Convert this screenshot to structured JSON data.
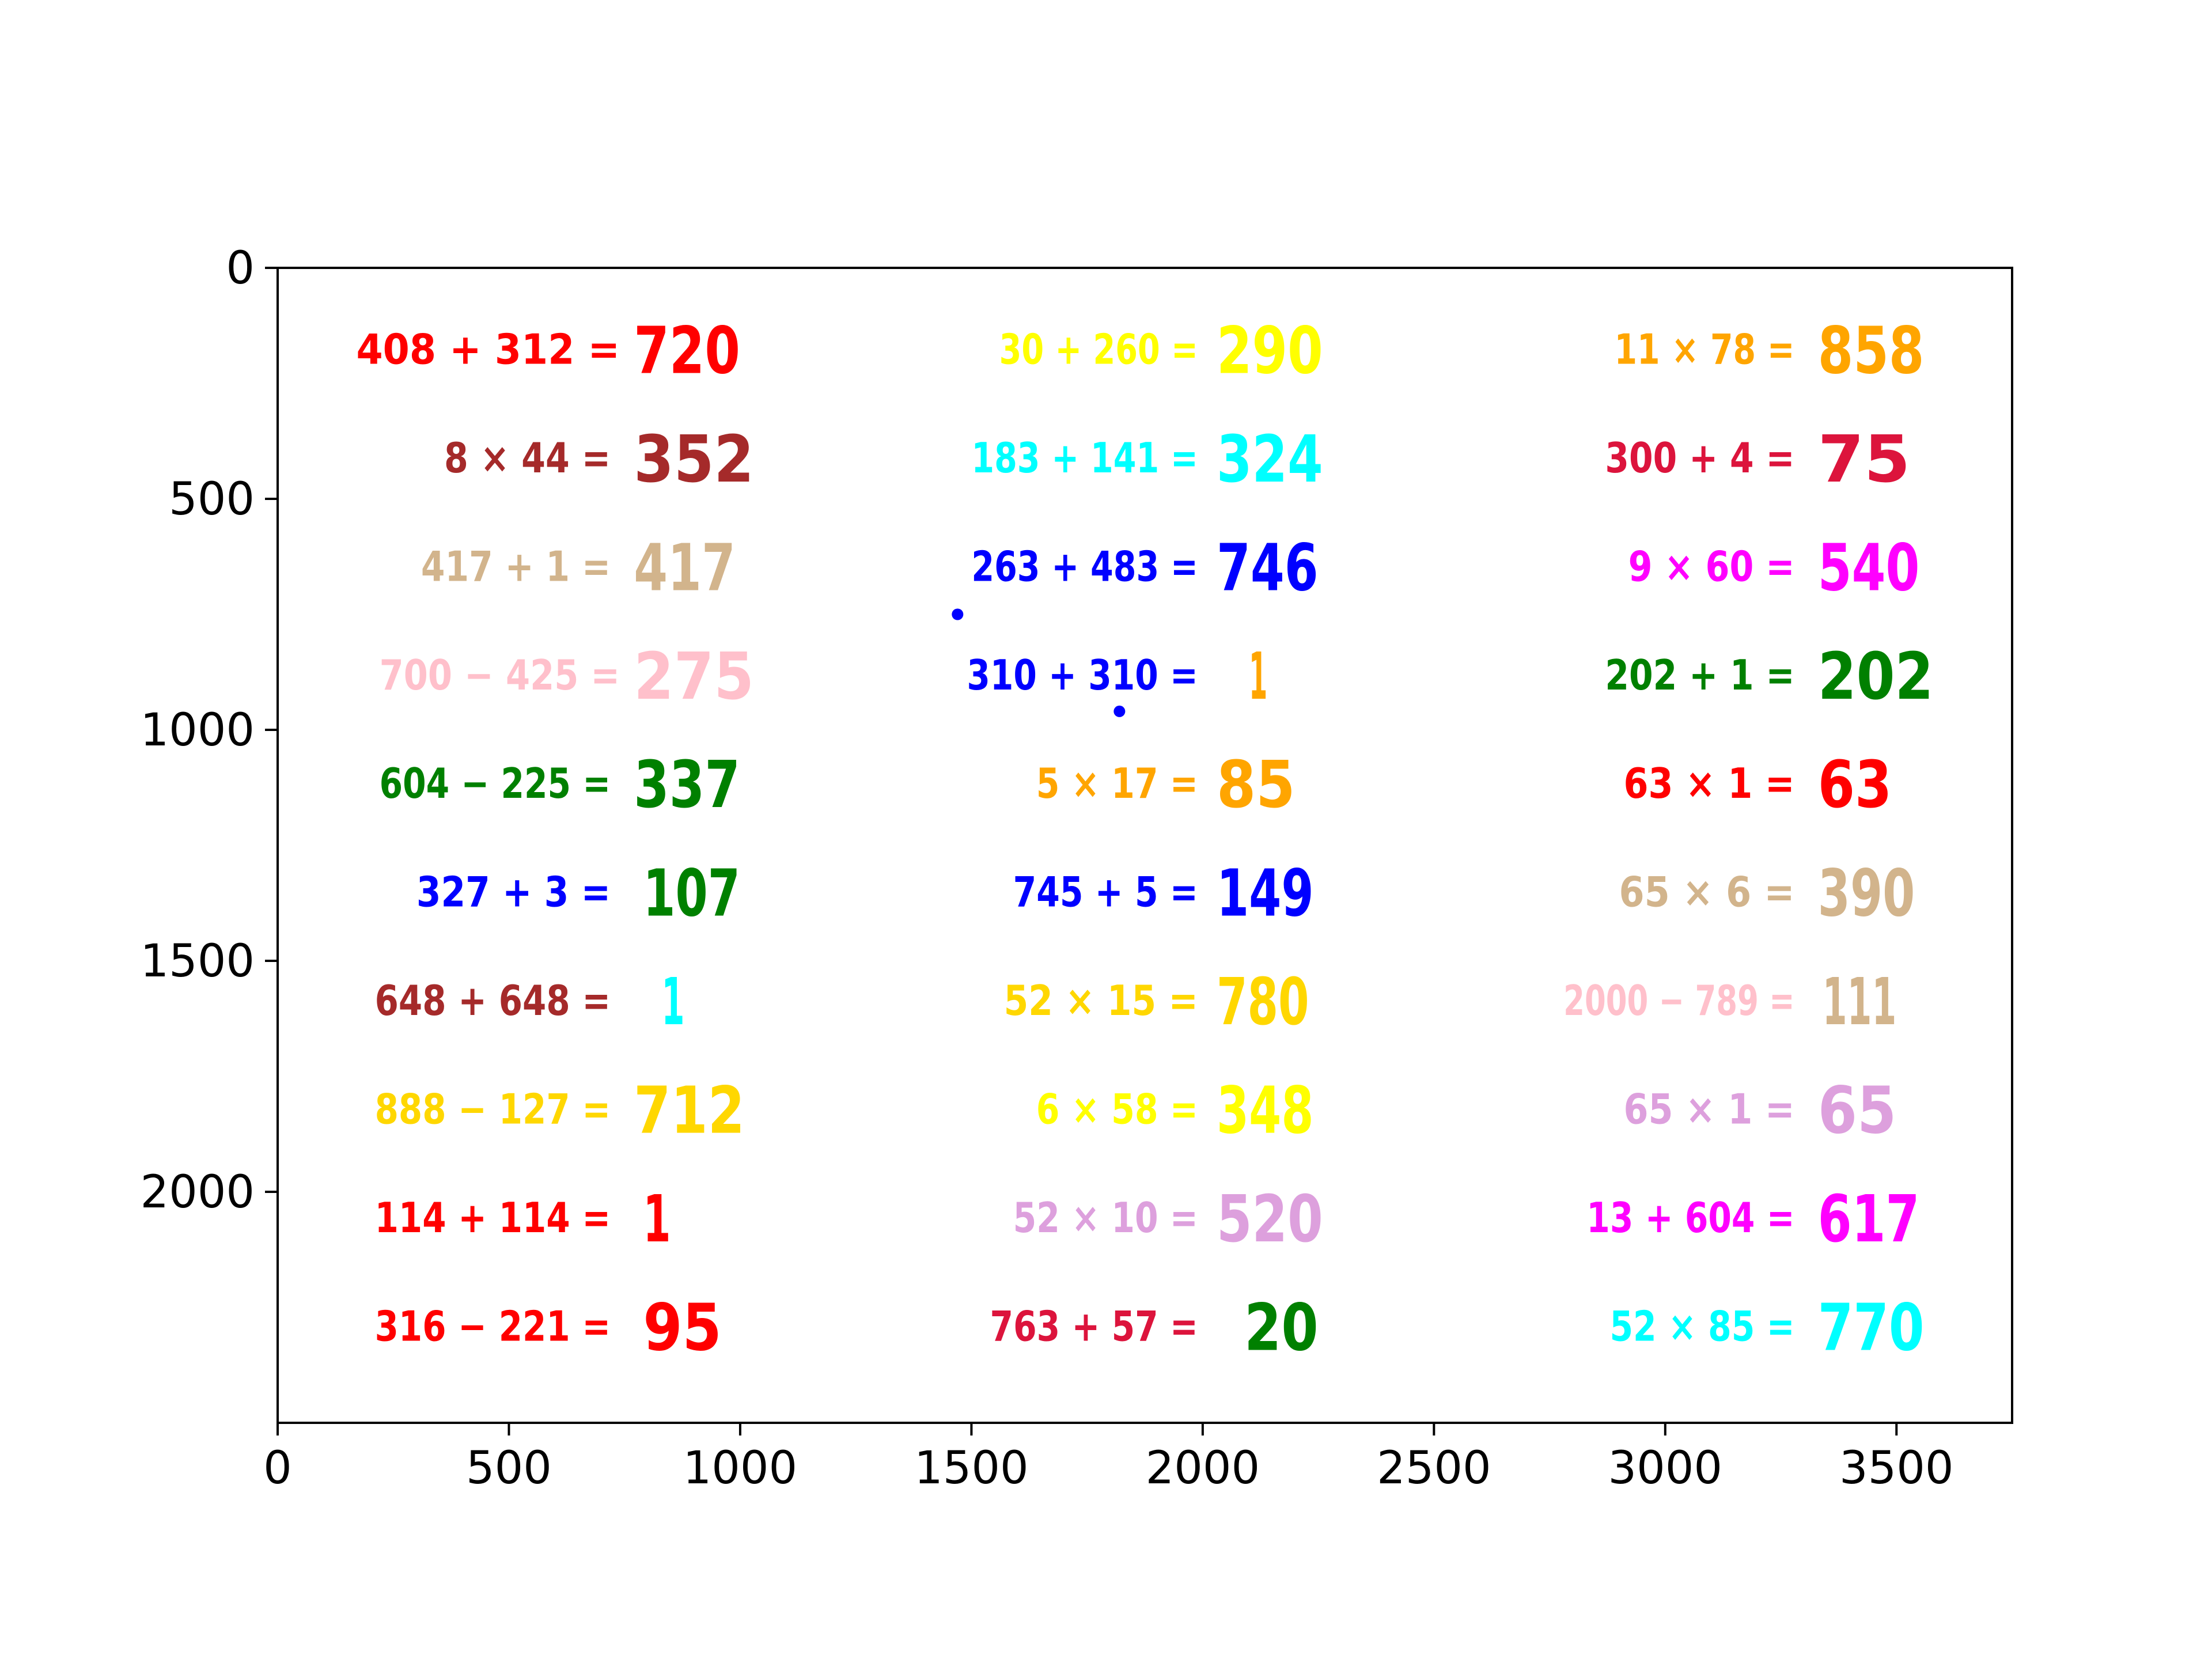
{
  "chart_data": {
    "type": "scatter",
    "title": "",
    "xlabel": "",
    "ylabel": "",
    "xlim": [
      0,
      3750
    ],
    "ylim": [
      2500,
      0
    ],
    "y_inverted": true,
    "grid": false,
    "x_ticks": [
      0,
      500,
      1000,
      1500,
      2000,
      2500,
      3000,
      3500
    ],
    "x_tick_labels": [
      "0",
      "500",
      "1000",
      "1500",
      "2000",
      "2500",
      "3000",
      "3500"
    ],
    "y_ticks": [
      0,
      500,
      1000,
      1500,
      2000
    ],
    "y_tick_labels": [
      "0",
      "500",
      "1000",
      "1500",
      "2000"
    ],
    "annotations": [
      {
        "expr": "408 + 312 =",
        "answer": "720",
        "x_start": 170,
        "x_end": 740,
        "ans_x": 770,
        "ans_x_end": 1000,
        "y": 175,
        "color": "#ff0000",
        "answer_color": "#ff0000"
      },
      {
        "expr": "8 × 44 =",
        "answer": "352",
        "x_start": 360,
        "x_end": 720,
        "ans_x": 770,
        "ans_x_end": 1030,
        "y": 410,
        "color": "#a52a2a",
        "answer_color": "#a52a2a"
      },
      {
        "expr": "417 + 1 =",
        "answer": "417",
        "x_start": 310,
        "x_end": 720,
        "ans_x": 770,
        "ans_x_end": 990,
        "y": 645,
        "color": "#d2b48c",
        "answer_color": "#d2b48c"
      },
      {
        "expr": "700 − 425 =",
        "answer": "275",
        "x_start": 220,
        "x_end": 740,
        "ans_x": 770,
        "ans_x_end": 1030,
        "y": 880,
        "color": "#ffc0cb",
        "answer_color": "#ffc0cb"
      },
      {
        "expr": "604 − 225 =",
        "answer": "337",
        "x_start": 220,
        "x_end": 720,
        "ans_x": 770,
        "ans_x_end": 1000,
        "y": 1115,
        "color": "#008000",
        "answer_color": "#008000"
      },
      {
        "expr": "327 + 3 =",
        "answer": "107",
        "x_start": 300,
        "x_end": 720,
        "ans_x": 790,
        "ans_x_end": 1000,
        "y": 1350,
        "color": "#0000ff",
        "answer_color": "#008000"
      },
      {
        "expr": "648 + 648 =",
        "answer": "1",
        "x_start": 210,
        "x_end": 720,
        "ans_x": 830,
        "ans_x_end": 880,
        "y": 1585,
        "color": "#a52a2a",
        "answer_color": "#00ffff"
      },
      {
        "expr": "888 − 127 =",
        "answer": "712",
        "x_start": 210,
        "x_end": 720,
        "ans_x": 770,
        "ans_x_end": 1010,
        "y": 1820,
        "color": "#ffd700",
        "answer_color": "#ffd700"
      },
      {
        "expr": "114 + 114 =",
        "answer": "1",
        "x_start": 210,
        "x_end": 720,
        "ans_x": 790,
        "ans_x_end": 850,
        "y": 2055,
        "color": "#ff0000",
        "answer_color": "#ff0000"
      },
      {
        "expr": "316 − 221 =",
        "answer": "95",
        "x_start": 210,
        "x_end": 720,
        "ans_x": 790,
        "ans_x_end": 960,
        "y": 2290,
        "color": "#ff0000",
        "answer_color": "#ff0000"
      },
      {
        "expr": "30 + 260 =",
        "answer": "290",
        "x_start": 1560,
        "x_end": 1990,
        "ans_x": 2030,
        "ans_x_end": 2260,
        "y": 175,
        "color": "#ffff00",
        "answer_color": "#ffff00"
      },
      {
        "expr": "183 + 141 =",
        "answer": "324",
        "x_start": 1500,
        "x_end": 1990,
        "ans_x": 2030,
        "ans_x_end": 2260,
        "y": 410,
        "color": "#00ffff",
        "answer_color": "#00ffff"
      },
      {
        "expr": "263 + 483 =",
        "answer": "746",
        "x_start": 1500,
        "x_end": 1990,
        "ans_x": 2030,
        "ans_x_end": 2250,
        "y": 645,
        "color": "#0000ff",
        "answer_color": "#0000ff"
      },
      {
        "expr": "310 + 310 =",
        "answer": "1",
        "x_start": 1490,
        "x_end": 1990,
        "ans_x": 2100,
        "ans_x_end": 2140,
        "y": 880,
        "color": "#0000ff",
        "answer_color": "#ffa500"
      },
      {
        "expr": "5 × 17 =",
        "answer": "85",
        "x_start": 1640,
        "x_end": 1990,
        "ans_x": 2030,
        "ans_x_end": 2200,
        "y": 1115,
        "color": "#ffa500",
        "answer_color": "#ffa500"
      },
      {
        "expr": "745 + 5 =",
        "answer": "149",
        "x_start": 1590,
        "x_end": 1990,
        "ans_x": 2030,
        "ans_x_end": 2240,
        "y": 1350,
        "color": "#0000ff",
        "answer_color": "#0000ff"
      },
      {
        "expr": "52 × 15 =",
        "answer": "780",
        "x_start": 1570,
        "x_end": 1990,
        "ans_x": 2030,
        "ans_x_end": 2230,
        "y": 1585,
        "color": "#ffd700",
        "answer_color": "#ffd700"
      },
      {
        "expr": "6 × 58 =",
        "answer": "348",
        "x_start": 1640,
        "x_end": 1990,
        "ans_x": 2030,
        "ans_x_end": 2240,
        "y": 1820,
        "color": "#ffff00",
        "answer_color": "#ffff00"
      },
      {
        "expr": "52 × 10 =",
        "answer": "520",
        "x_start": 1590,
        "x_end": 1990,
        "ans_x": 2030,
        "ans_x_end": 2260,
        "y": 2055,
        "color": "#dda0dd",
        "answer_color": "#dda0dd"
      },
      {
        "expr": "763 + 57 =",
        "answer": "20",
        "x_start": 1540,
        "x_end": 1990,
        "ans_x": 2090,
        "ans_x_end": 2250,
        "y": 2290,
        "color": "#dc143c",
        "answer_color": "#008000"
      },
      {
        "expr": "11 × 78 =",
        "answer": "858",
        "x_start": 2890,
        "x_end": 3280,
        "ans_x": 3330,
        "ans_x_end": 3560,
        "y": 175,
        "color": "#ffa500",
        "answer_color": "#ffa500"
      },
      {
        "expr": "300 + 4 =",
        "answer": "75",
        "x_start": 2870,
        "x_end": 3280,
        "ans_x": 3330,
        "ans_x_end": 3530,
        "y": 410,
        "color": "#dc143c",
        "answer_color": "#dc143c"
      },
      {
        "expr": "9 × 60 =",
        "answer": "540",
        "x_start": 2920,
        "x_end": 3280,
        "ans_x": 3330,
        "ans_x_end": 3550,
        "y": 645,
        "color": "#ff00ff",
        "answer_color": "#ff00ff"
      },
      {
        "expr": "202 + 1 =",
        "answer": "202",
        "x_start": 2870,
        "x_end": 3280,
        "ans_x": 3330,
        "ans_x_end": 3580,
        "y": 880,
        "color": "#008000",
        "answer_color": "#008000"
      },
      {
        "expr": "63 × 1 =",
        "answer": "63",
        "x_start": 2910,
        "x_end": 3280,
        "ans_x": 3330,
        "ans_x_end": 3490,
        "y": 1115,
        "color": "#ff0000",
        "answer_color": "#ff0000"
      },
      {
        "expr": "65 × 6 =",
        "answer": "390",
        "x_start": 2900,
        "x_end": 3280,
        "ans_x": 3330,
        "ans_x_end": 3540,
        "y": 1350,
        "color": "#d2b48c",
        "answer_color": "#d2b48c"
      },
      {
        "expr": "2000 − 789 =",
        "answer": "111",
        "x_start": 2780,
        "x_end": 3280,
        "ans_x": 3340,
        "ans_x_end": 3500,
        "y": 1585,
        "color": "#ffc0cb",
        "answer_color": "#d2b48c"
      },
      {
        "expr": "65 × 1 =",
        "answer": "65",
        "x_start": 2910,
        "x_end": 3280,
        "ans_x": 3330,
        "ans_x_end": 3500,
        "y": 1820,
        "color": "#dda0dd",
        "answer_color": "#dda0dd"
      },
      {
        "expr": "13 + 604 =",
        "answer": "617",
        "x_start": 2830,
        "x_end": 3280,
        "ans_x": 3330,
        "ans_x_end": 3550,
        "y": 2055,
        "color": "#ff00ff",
        "answer_color": "#ff00ff"
      },
      {
        "expr": "52 × 85 =",
        "answer": "770",
        "x_start": 2880,
        "x_end": 3280,
        "ans_x": 3330,
        "ans_x_end": 3560,
        "y": 2290,
        "color": "#00ffff",
        "answer_color": "#00ffff"
      }
    ],
    "stray_marks": [
      {
        "x": 1470,
        "y": 750,
        "color": "#0000ff"
      },
      {
        "x": 1820,
        "y": 960,
        "color": "#0000ff"
      }
    ]
  }
}
